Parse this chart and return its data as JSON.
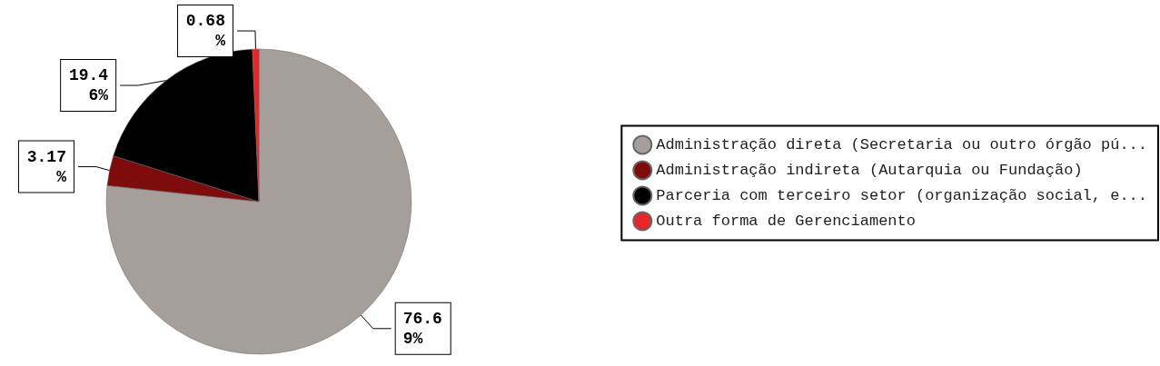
{
  "chart_data": {
    "type": "pie",
    "categories": [
      "Administração direta (Secretaria ou outro órgão pú...",
      "Administração indireta (Autarquia ou Fundação)",
      "Parceria com terceiro setor (organização social, e...",
      "Outra forma de Gerenciamento"
    ],
    "values": [
      76.69,
      3.17,
      19.46,
      0.68
    ],
    "value_labels": [
      "76.69%",
      "3.17%",
      "19.46%",
      "0.68%"
    ],
    "colors": [
      "#a59e9b",
      "#7f0c0c",
      "#000000",
      "#e8262a"
    ],
    "legend": "right"
  }
}
